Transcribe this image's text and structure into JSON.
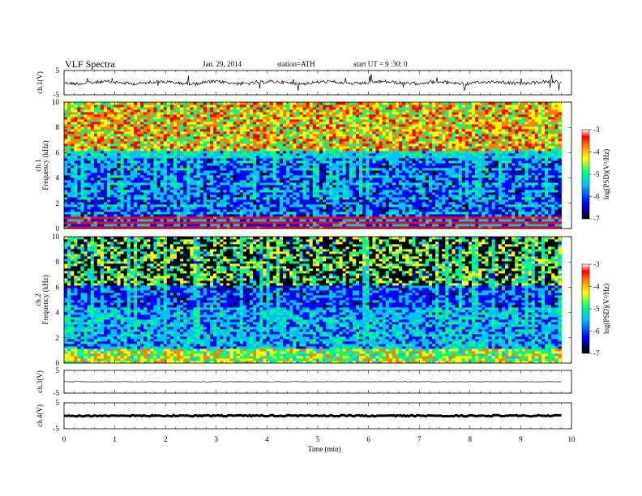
{
  "header": {
    "title": "VLF Spectra",
    "date": "Jan. 29, 2014",
    "station": "station=ATH",
    "start": "start UT = 9 :30: 0"
  },
  "colors": {
    "colormap": [
      "#000000",
      "#0000ff",
      "#00c0ff",
      "#00ff80",
      "#ffff00",
      "#ff8000",
      "#ff0000",
      "#ffffff"
    ]
  },
  "chart_data": [
    {
      "type": "line",
      "name": "ch1-waveform",
      "ylabel": "ch.1(V)",
      "yticks": [
        "5",
        "-5"
      ],
      "ylim": [
        -5,
        5
      ],
      "xlim": [
        0,
        10
      ],
      "trace_mean": 0.0,
      "trace_end_min": 9.8
    },
    {
      "type": "heatmap",
      "name": "ch1-spectrogram",
      "ylabel_1": "ch.1",
      "ylabel_2": "Frequency (kHz)",
      "yticks": [
        "0",
        "2",
        "4",
        "6",
        "8",
        "10"
      ],
      "ylim": [
        0,
        10
      ],
      "xlim": [
        0,
        10
      ],
      "data_end_min": 9.8,
      "colorbar": {
        "label": "log(PSD)(V²/Hz)",
        "ticks": [
          "-3",
          "-4",
          "-5",
          "-6",
          "-7"
        ],
        "range": [
          -7,
          -3
        ]
      }
    },
    {
      "type": "heatmap",
      "name": "ch2-spectrogram",
      "ylabel_1": "ch.2",
      "ylabel_2": "Frequency (kHz)",
      "yticks": [
        "0",
        "2",
        "4",
        "6",
        "8",
        "10"
      ],
      "ylim": [
        0,
        10
      ],
      "xlim": [
        0,
        10
      ],
      "data_end_min": 9.8,
      "colorbar": {
        "label": "log(PSD)(V²/Hz)",
        "ticks": [
          "-3",
          "-4",
          "-5",
          "-6",
          "-7"
        ],
        "range": [
          -7,
          -3
        ]
      }
    },
    {
      "type": "line",
      "name": "ch3-waveform",
      "ylabel": "ch.3(V)",
      "yticks": [
        "5",
        "-5"
      ],
      "ylim": [
        -5,
        5
      ],
      "xlim": [
        0,
        10
      ],
      "trace_mean": 0.0,
      "trace_end_min": 9.8
    },
    {
      "type": "line",
      "name": "ch4-waveform",
      "ylabel": "ch.4(V)",
      "yticks": [
        "5",
        "-5"
      ],
      "ylim": [
        -5,
        5
      ],
      "xlim": [
        0,
        10
      ],
      "trace_mean": 0.0,
      "trace_end_min": 9.8
    }
  ],
  "xaxis": {
    "label": "Time (min)",
    "ticks": [
      "0",
      "1",
      "2",
      "3",
      "4",
      "5",
      "6",
      "7",
      "8",
      "9",
      "10"
    ],
    "range": [
      0,
      10
    ]
  }
}
